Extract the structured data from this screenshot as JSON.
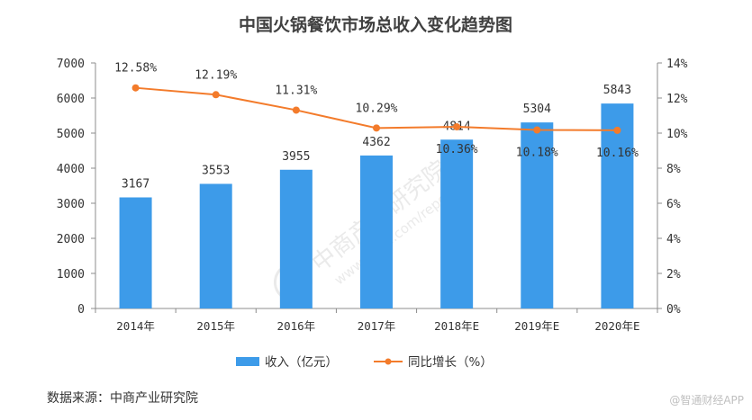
{
  "chart_data": {
    "type": "bar",
    "title": "中国火锅餐饮市场总收入变化趋势图",
    "categories": [
      "2014年",
      "2015年",
      "2016年",
      "2017年",
      "2018年E",
      "2019年E",
      "2020年E"
    ],
    "series": [
      {
        "name": "收入（亿元）",
        "type": "bar",
        "axis": "left",
        "color": "#3d9be9",
        "values": [
          3167,
          3553,
          3955,
          4362,
          4814,
          5304,
          5843
        ]
      },
      {
        "name": "同比增长（%）",
        "type": "line",
        "axis": "right",
        "color": "#f37b2b",
        "values": [
          12.58,
          12.19,
          11.31,
          10.29,
          10.36,
          10.18,
          10.16
        ],
        "labels": [
          "12.58%",
          "12.19%",
          "11.31%",
          "10.29%",
          "10.36%",
          "10.18%",
          "10.16%"
        ]
      }
    ],
    "y_left": {
      "min": 0,
      "max": 7000,
      "step": 1000,
      "ticks": [
        "0",
        "1000",
        "2000",
        "3000",
        "4000",
        "5000",
        "6000",
        "7000"
      ]
    },
    "y_right": {
      "min": 0,
      "max": 14,
      "step": 2,
      "ticks": [
        "0%",
        "2%",
        "4%",
        "6%",
        "8%",
        "10%",
        "12%",
        "14%"
      ]
    },
    "grid": false,
    "legend_position": "bottom",
    "source": "数据来源：中商产业研究院",
    "watermark": {
      "text": "中商产业研究院",
      "url": "www.askci.com/reports"
    },
    "credit": "@智通财经APP"
  }
}
